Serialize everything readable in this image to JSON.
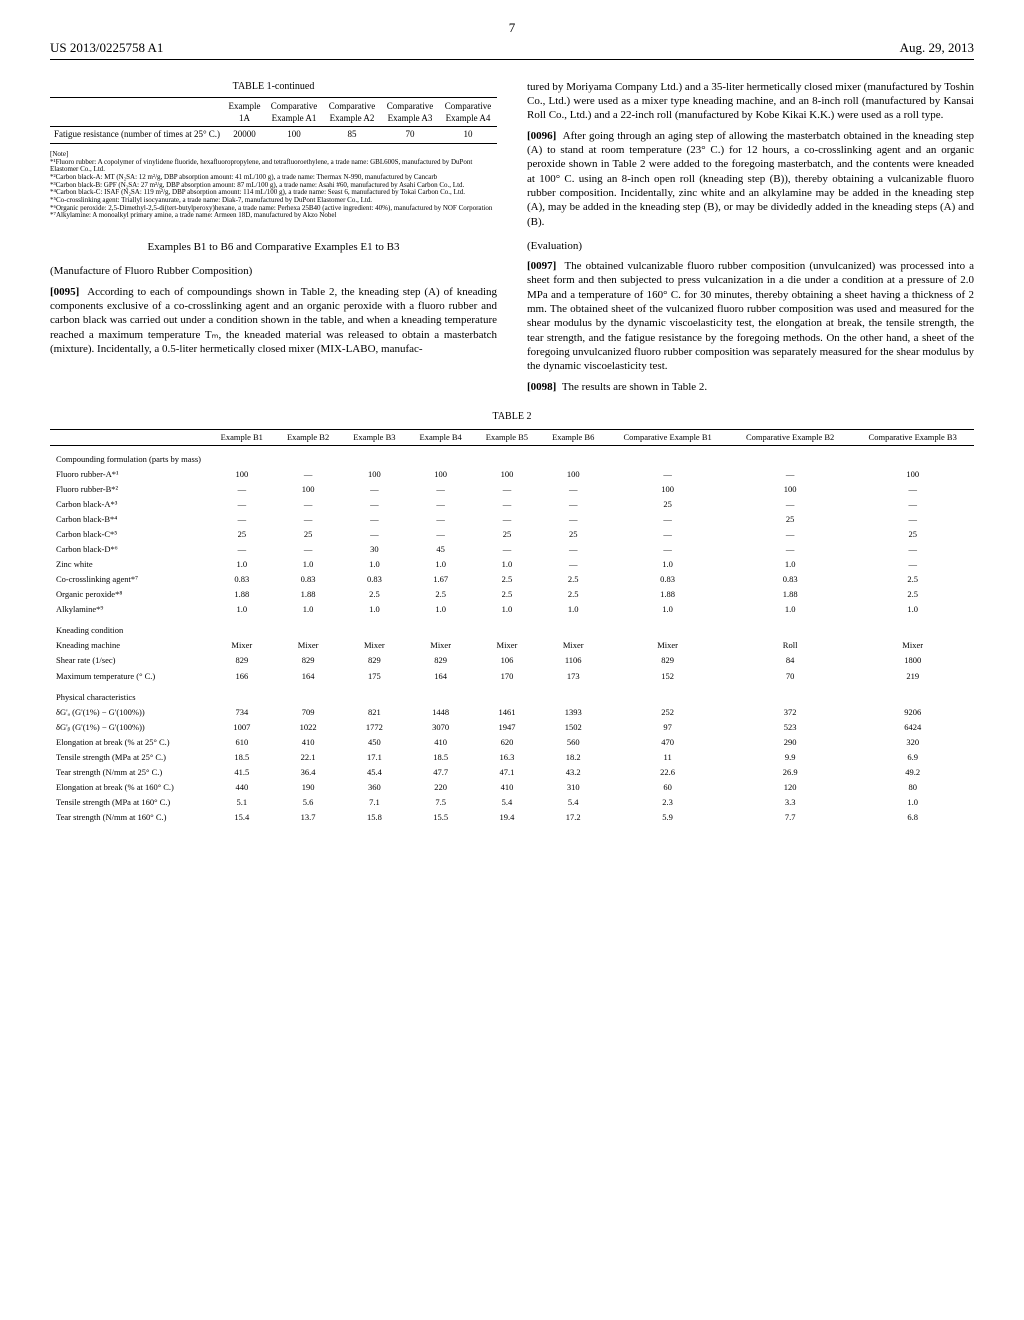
{
  "header": {
    "left": "US 2013/0225758 A1",
    "page": "7",
    "right": "Aug. 29, 2013"
  },
  "table1": {
    "title": "TABLE 1-continued",
    "cols": [
      "Example 1A",
      "Comparative Example A1",
      "Comparative Example A2",
      "Comparative Example A3",
      "Comparative Example A4"
    ],
    "row_label": "Fatigue resistance (number of times at 25° C.)",
    "row_vals": [
      "20000",
      "100",
      "85",
      "70",
      "10"
    ]
  },
  "notes": {
    "head": "[Note]",
    "n1": "*¹Fluoro rubber: A copolymer of vinylidene fluoride, hexafluoropropylene, and tetrafluoroethylene, a trade name: GBL600S, manufactured by DuPont Elastomer Co., Ltd.",
    "n2": "*²Carbon black-A: MT (N₂SA: 12 m²/g, DBP absorption amount: 41 mL/100 g), a trade name: Thermax N-990, manufactured by Cancarb",
    "n3": "*³Carbon black-B: GPF (N₂SA: 27 m²/g, DBP absorption amount: 87 mL/100 g), a trade name: Asahi #60, manufactured by Asahi Carbon Co., Ltd.",
    "n4": "*⁴Carbon black-C: ISAF (N₂SA: 119 m²/g, DBP absorption amount: 114 mL/100 g), a trade name: Seast 6, manufactured by Tokai Carbon Co., Ltd.",
    "n5": "*⁵Co-crosslinking agent: Triallyl isocyanurate, a trade name: Diak-7, manufactured by DuPont Elastomer Co., Ltd.",
    "n6": "*⁶Organic peroxide: 2,5-Dimethyl-2,5-di(tert-butylperoxy)hexane, a trade name: Perhexa 25B40 (active ingredient: 40%), manufactured by NOF Corporation",
    "n7": "*⁷Alkylamine: A monoalkyl primary amine, a trade name: Armeen 18D, manufactured by Akzo Nobel"
  },
  "sectionH": "Examples B1 to B6 and Comparative Examples E1 to B3",
  "subH1": "(Manufacture of Fluoro Rubber Composition)",
  "p95": {
    "num": "[0095]",
    "text": "According to each of compoundings shown in Table 2, the kneading step (A) of kneading components exclusive of a co-crosslinking agent and an organic peroxide with a fluoro rubber and carbon black was carried out under a condition shown in the table, and when a kneading temperature reached a maximum temperature Tₘ, the kneaded material was released to obtain a masterbatch (mixture). Incidentally, a 0.5-liter hermetically closed mixer (MIX-LABO, manufac-"
  },
  "p95b": "tured by Moriyama Company Ltd.) and a 35-liter hermetically closed mixer (manufactured by Toshin Co., Ltd.) were used as a mixer type kneading machine, and an 8-inch roll (manufactured by Kansai Roll Co., Ltd.) and a 22-inch roll (manufactured by Kobe Kikai K.K.) were used as a roll type.",
  "p96": {
    "num": "[0096]",
    "text": "After going through an aging step of allowing the masterbatch obtained in the kneading step (A) to stand at room temperature (23° C.) for 12 hours, a co-crosslinking agent and an organic peroxide shown in Table 2 were added to the foregoing masterbatch, and the contents were kneaded at 100° C. using an 8-inch open roll (kneading step (B)), thereby obtaining a vulcanizable fluoro rubber composition. Incidentally, zinc white and an alkylamine may be added in the kneading step (A), may be added in the kneading step (B), or may be dividedly added in the kneading steps (A) and (B)."
  },
  "subH2": "(Evaluation)",
  "p97": {
    "num": "[0097]",
    "text": "The obtained vulcanizable fluoro rubber composition (unvulcanized) was processed into a sheet form and then subjected to press vulcanization in a die under a condition at a pressure of 2.0 MPa and a temperature of 160° C. for 30 minutes, thereby obtaining a sheet having a thickness of 2 mm. The obtained sheet of the vulcanized fluoro rubber composition was used and measured for the shear modulus by the dynamic viscoelasticity test, the elongation at break, the tensile strength, the tear strength, and the fatigue resistance by the foregoing methods. On the other hand, a sheet of the foregoing unvulcanized fluoro rubber composition was separately measured for the shear modulus by the dynamic viscoelasticity test."
  },
  "p98": {
    "num": "[0098]",
    "text": "The results are shown in Table 2."
  },
  "table2": {
    "title": "TABLE 2",
    "cols": [
      "Example B1",
      "Example B2",
      "Example B3",
      "Example B4",
      "Example B5",
      "Example B6",
      "Comparative Example B1",
      "Comparative Example B2",
      "Comparative Example B3"
    ],
    "sect1": "Compounding formulation (parts by mass)",
    "rows1": [
      {
        "label": "Fluoro rubber-A*¹",
        "v": [
          "100",
          "—",
          "100",
          "100",
          "100",
          "100",
          "—",
          "—",
          "100"
        ]
      },
      {
        "label": "Fluoro rubber-B*²",
        "v": [
          "—",
          "100",
          "—",
          "—",
          "—",
          "—",
          "100",
          "100",
          "—"
        ]
      },
      {
        "label": "Carbon black-A*³",
        "v": [
          "—",
          "—",
          "—",
          "—",
          "—",
          "—",
          "25",
          "—",
          "—"
        ]
      },
      {
        "label": "Carbon black-B*⁴",
        "v": [
          "—",
          "—",
          "—",
          "—",
          "—",
          "—",
          "—",
          "25",
          "—"
        ]
      },
      {
        "label": "Carbon black-C*⁵",
        "v": [
          "25",
          "25",
          "—",
          "—",
          "25",
          "25",
          "—",
          "—",
          "25"
        ]
      },
      {
        "label": "Carbon black-D*⁶",
        "v": [
          "—",
          "—",
          "30",
          "45",
          "—",
          "—",
          "—",
          "—",
          "—"
        ]
      },
      {
        "label": "Zinc white",
        "v": [
          "1.0",
          "1.0",
          "1.0",
          "1.0",
          "1.0",
          "—",
          "1.0",
          "1.0",
          "—"
        ]
      },
      {
        "label": "Co-crosslinking agent*⁷",
        "v": [
          "0.83",
          "0.83",
          "0.83",
          "1.67",
          "2.5",
          "2.5",
          "0.83",
          "0.83",
          "2.5"
        ]
      },
      {
        "label": "Organic peroxide*⁸",
        "v": [
          "1.88",
          "1.88",
          "2.5",
          "2.5",
          "2.5",
          "2.5",
          "1.88",
          "1.88",
          "2.5"
        ]
      },
      {
        "label": "Alkylamine*⁹",
        "v": [
          "1.0",
          "1.0",
          "1.0",
          "1.0",
          "1.0",
          "1.0",
          "1.0",
          "1.0",
          "1.0"
        ]
      }
    ],
    "sect2": "Kneading condition",
    "rows2": [
      {
        "label": "Kneading machine",
        "v": [
          "Mixer",
          "Mixer",
          "Mixer",
          "Mixer",
          "Mixer",
          "Mixer",
          "Mixer",
          "Roll",
          "Mixer"
        ]
      },
      {
        "label": "Shear rate (1/sec)",
        "v": [
          "829",
          "829",
          "829",
          "829",
          "106",
          "1106",
          "829",
          "84",
          "1800"
        ]
      },
      {
        "label": "Maximum temperature (° C.)",
        "v": [
          "166",
          "164",
          "175",
          "164",
          "170",
          "173",
          "152",
          "70",
          "219"
        ]
      }
    ],
    "sect3": "Physical characteristics",
    "rows3": [
      {
        "label": "δG'ₐ (G'(1%) − G'(100%))",
        "v": [
          "734",
          "709",
          "821",
          "1448",
          "1461",
          "1393",
          "252",
          "372",
          "9206"
        ]
      },
      {
        "label": "δG'ᵦ (G'(1%) − G'(100%))",
        "v": [
          "1007",
          "1022",
          "1772",
          "3070",
          "1947",
          "1502",
          "97",
          "523",
          "6424"
        ]
      },
      {
        "label": "Elongation at break (% at 25° C.)",
        "v": [
          "610",
          "410",
          "450",
          "410",
          "620",
          "560",
          "470",
          "290",
          "320"
        ]
      },
      {
        "label": "Tensile strength (MPa at 25° C.)",
        "v": [
          "18.5",
          "22.1",
          "17.1",
          "18.5",
          "16.3",
          "18.2",
          "11",
          "9.9",
          "6.9"
        ]
      },
      {
        "label": "Tear strength (N/mm at 25° C.)",
        "v": [
          "41.5",
          "36.4",
          "45.4",
          "47.7",
          "47.1",
          "43.2",
          "22.6",
          "26.9",
          "49.2"
        ]
      },
      {
        "label": "Elongation at break (% at 160° C.)",
        "v": [
          "440",
          "190",
          "360",
          "220",
          "410",
          "310",
          "60",
          "120",
          "80"
        ]
      },
      {
        "label": "Tensile strength (MPa at 160° C.)",
        "v": [
          "5.1",
          "5.6",
          "7.1",
          "7.5",
          "5.4",
          "5.4",
          "2.3",
          "3.3",
          "1.0"
        ]
      },
      {
        "label": "Tear strength (N/mm at 160° C.)",
        "v": [
          "15.4",
          "13.7",
          "15.8",
          "15.5",
          "19.4",
          "17.2",
          "5.9",
          "7.7",
          "6.8"
        ]
      }
    ]
  }
}
